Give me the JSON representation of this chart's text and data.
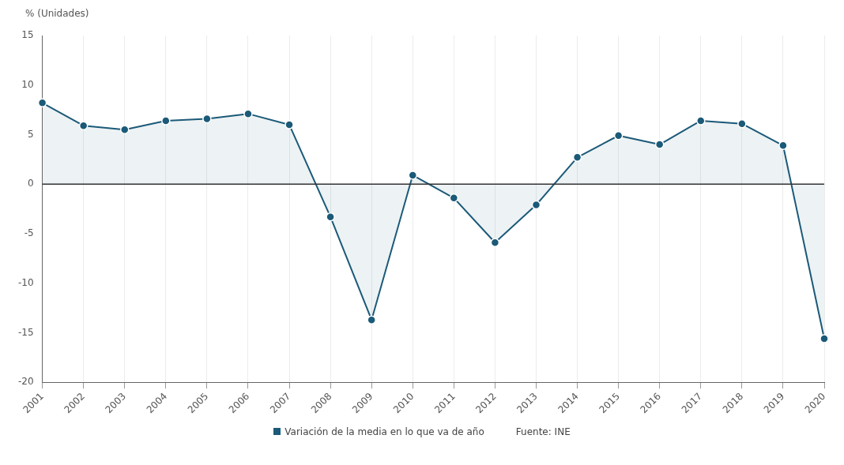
{
  "chart_data": {
    "type": "area",
    "ylabel": "% (Unidades)",
    "categories": [
      "2001",
      "2002",
      "2003",
      "2004",
      "2005",
      "2006",
      "2007",
      "2008",
      "2009",
      "2010",
      "2011",
      "2012",
      "2013",
      "2014",
      "2015",
      "2016",
      "2017",
      "2018",
      "2019",
      "2020"
    ],
    "series": [
      {
        "name": "Variación de la media en lo que va de año",
        "color": "#1b5a78",
        "values": [
          8.2,
          5.9,
          5.5,
          6.4,
          6.6,
          7.1,
          6.0,
          -3.3,
          -13.7,
          0.9,
          -1.4,
          -5.9,
          -2.1,
          2.7,
          4.9,
          4.0,
          6.4,
          6.1,
          3.9,
          -15.6
        ]
      }
    ],
    "ylim": [
      -20,
      15
    ],
    "yticks": [
      -20,
      -15,
      -10,
      -5,
      0,
      5,
      10,
      15
    ],
    "ref_lines": [
      {
        "axis": "y",
        "value": 0,
        "color": "#333333"
      }
    ],
    "grid": "x",
    "legend": "bottom",
    "marker": "circle",
    "line_style": "solid",
    "annotations": [
      "Fuente: INE"
    ]
  }
}
